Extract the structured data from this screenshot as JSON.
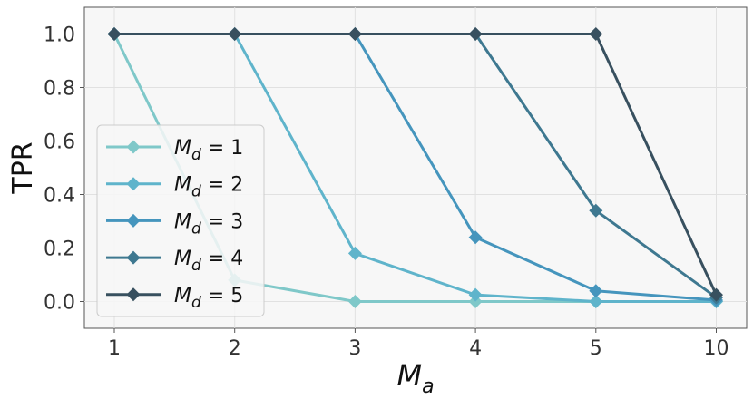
{
  "chart_data": {
    "type": "line",
    "categories": [
      "1",
      "2",
      "3",
      "4",
      "5",
      "10"
    ],
    "xlabel": "M_a",
    "ylabel": "TPR",
    "ylim": [
      -0.1,
      1.1
    ],
    "yticks": [
      "0.0",
      "0.2",
      "0.4",
      "0.6",
      "0.8",
      "1.0"
    ],
    "grid": true,
    "legend_position": "left",
    "series": [
      {
        "name": "M_d = 1",
        "color": "#7fc8c9",
        "values": [
          1.0,
          0.08,
          0.0,
          0.0,
          0.0,
          0.0
        ]
      },
      {
        "name": "M_d = 2",
        "color": "#5fb4cb",
        "values": [
          1.0,
          1.0,
          0.18,
          0.025,
          0.0,
          0.0
        ]
      },
      {
        "name": "M_d = 3",
        "color": "#4595bd",
        "values": [
          1.0,
          1.0,
          1.0,
          0.24,
          0.04,
          0.005
        ]
      },
      {
        "name": "M_d = 4",
        "color": "#3e7890",
        "values": [
          1.0,
          1.0,
          1.0,
          1.0,
          0.34,
          0.015
        ]
      },
      {
        "name": "M_d = 5",
        "color": "#38505f",
        "values": [
          1.0,
          1.0,
          1.0,
          1.0,
          1.0,
          0.025
        ]
      }
    ]
  }
}
